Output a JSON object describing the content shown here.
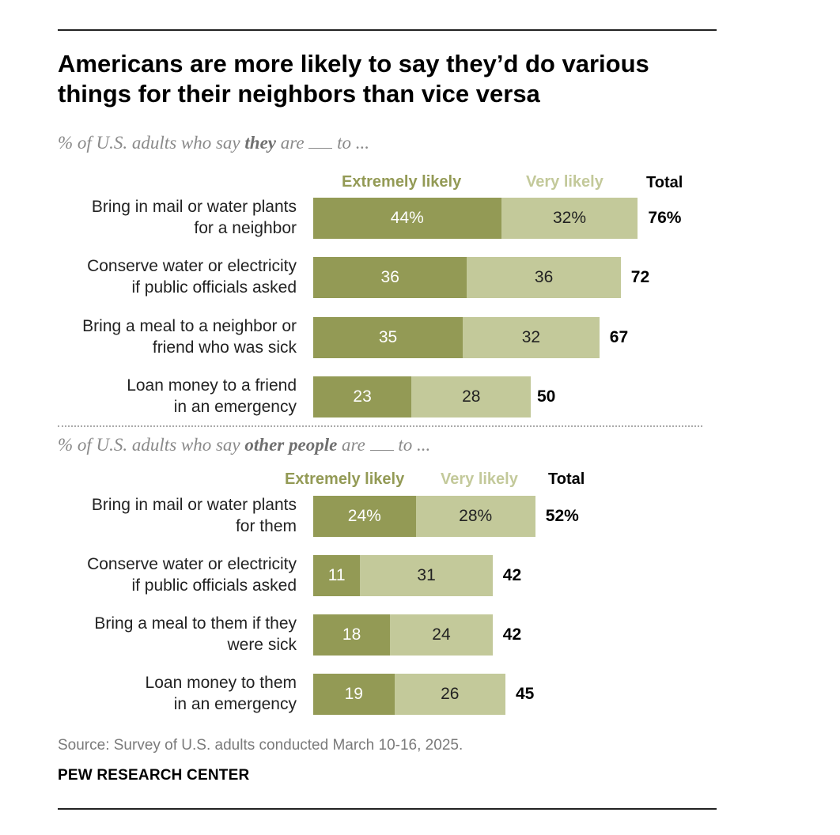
{
  "title_line1": "Americans are more likely to say they’d do various",
  "title_line2": "things for their neighbors than vice versa",
  "chart_data": [
    {
      "type": "bar",
      "orientation": "horizontal",
      "stacked": true,
      "subtitle": {
        "prefix": "% of U.S. adults who say ",
        "emph": "they",
        "middle": " are ",
        "suffix": " to ..."
      },
      "legend": [
        "Extremely likely",
        "Very likely",
        "Total"
      ],
      "categories": [
        [
          "Bring in mail or water plants",
          "for a neighbor"
        ],
        [
          "Conserve water or electricity",
          "if public officials asked"
        ],
        [
          "Bring a meal to a neighbor or",
          "friend who was sick"
        ],
        [
          "Loan money to a friend",
          "in an emergency"
        ]
      ],
      "series": [
        {
          "name": "Extremely likely",
          "values": [
            44,
            36,
            35,
            23
          ],
          "labels": [
            "44%",
            "36",
            "35",
            "23"
          ]
        },
        {
          "name": "Very likely",
          "values": [
            32,
            36,
            32,
            28
          ],
          "labels": [
            "32%",
            "36",
            "32",
            "28"
          ]
        }
      ],
      "totals": [
        76,
        72,
        67,
        50
      ],
      "total_labels": [
        "76%",
        "72",
        "67",
        "50"
      ],
      "xlim": [
        0,
        100
      ],
      "grid": false,
      "legend_placement": "top"
    },
    {
      "type": "bar",
      "orientation": "horizontal",
      "stacked": true,
      "subtitle": {
        "prefix": "% of U.S. adults who say ",
        "emph": "other people",
        "middle": " are ",
        "suffix": " to ..."
      },
      "legend": [
        "Extremely likely",
        "Very likely",
        "Total"
      ],
      "categories": [
        [
          "Bring in mail or water plants",
          "for them"
        ],
        [
          "Conserve water or electricity",
          "if public officials asked"
        ],
        [
          "Bring a meal to them if they",
          "were sick"
        ],
        [
          "Loan money to them",
          "in an emergency"
        ]
      ],
      "series": [
        {
          "name": "Extremely likely",
          "values": [
            24,
            11,
            18,
            19
          ],
          "labels": [
            "24%",
            "11",
            "18",
            "19"
          ]
        },
        {
          "name": "Very likely",
          "values": [
            28,
            31,
            24,
            26
          ],
          "labels": [
            "28%",
            "31",
            "24",
            "26"
          ]
        }
      ],
      "totals": [
        52,
        42,
        42,
        45
      ],
      "total_labels": [
        "52%",
        "42",
        "42",
        "45"
      ],
      "xlim": [
        0,
        100
      ],
      "grid": false,
      "legend_placement": "top"
    }
  ],
  "colors": {
    "extremely_likely": "#939a55",
    "very_likely": "#c3c99a"
  },
  "source": "Source: Survey of U.S. adults conducted March 10-16, 2025.",
  "brand": "PEW RESEARCH CENTER"
}
